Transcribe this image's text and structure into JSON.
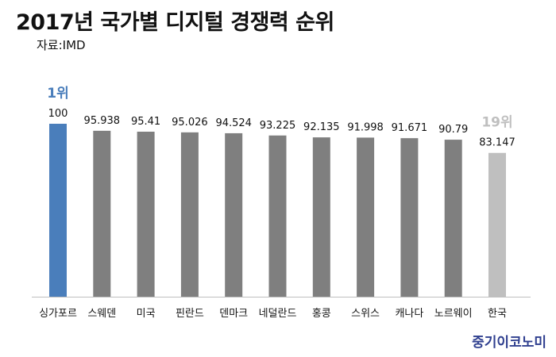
{
  "header": {
    "title": "2017년 국가별 디지털 경쟁력 순위",
    "source": "자료:IMD"
  },
  "brand": {
    "text": "중기이코노미",
    "color": "#2f3f8f"
  },
  "chart_data": {
    "type": "bar",
    "title": "2017년 국가별 디지털 경쟁력 순위",
    "xlabel": "",
    "ylabel": "",
    "ylim": [
      0,
      100
    ],
    "grid": false,
    "legend": "none",
    "categories": [
      "싱가포르",
      "스웨덴",
      "미국",
      "핀란드",
      "덴마크",
      "네덜란드",
      "홍콩",
      "스위스",
      "캐나다",
      "노르웨이",
      "한국"
    ],
    "values": [
      100,
      95.938,
      95.41,
      95.026,
      94.524,
      93.225,
      92.135,
      91.998,
      91.671,
      90.79,
      83.147
    ],
    "value_labels": [
      "100",
      "95.938",
      "95.41",
      "95.026",
      "94.524",
      "93.225",
      "92.135",
      "91.998",
      "91.671",
      "90.79",
      "83.147"
    ],
    "annotations": [
      {
        "category": "싱가포르",
        "text": "1위",
        "color": "#4a7ebb"
      },
      {
        "category": "한국",
        "text": "19위",
        "color": "#bfbfbf"
      }
    ],
    "colors": {
      "default": "#7f7f7f",
      "highlight_first": "#4a7ebb",
      "highlight_korea": "#bfbfbf",
      "axis": "#bfbfbf"
    }
  }
}
